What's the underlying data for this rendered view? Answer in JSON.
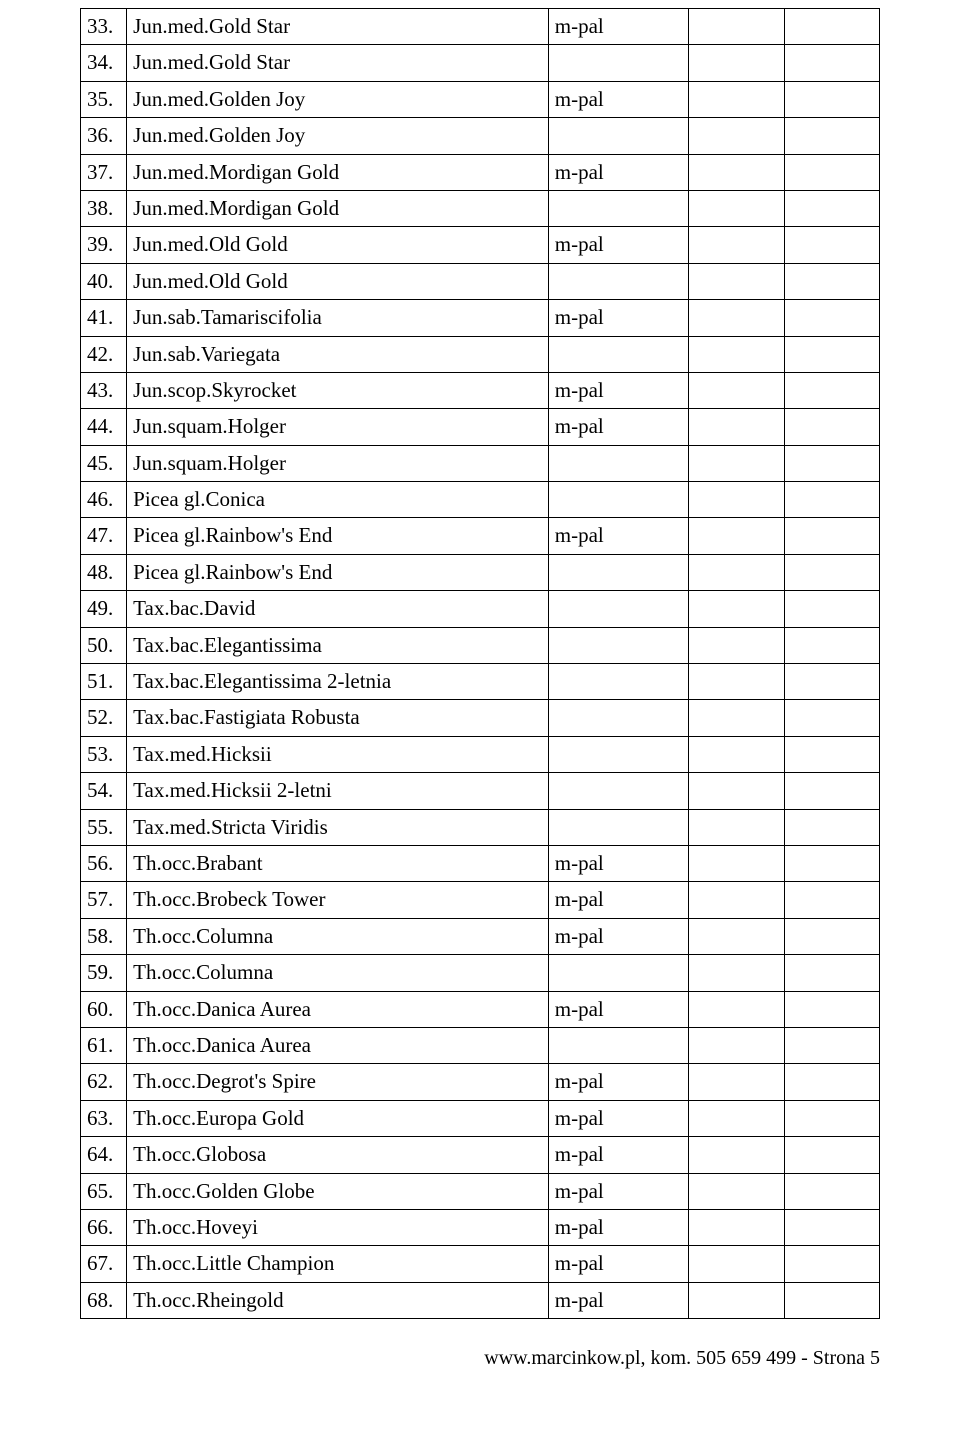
{
  "table": {
    "rows": [
      {
        "num": "33.",
        "name": "Jun.med.Gold Star",
        "note": "m-pal"
      },
      {
        "num": "34.",
        "name": "Jun.med.Gold Star",
        "note": ""
      },
      {
        "num": "35.",
        "name": "Jun.med.Golden Joy",
        "note": "m-pal"
      },
      {
        "num": "36.",
        "name": "Jun.med.Golden Joy",
        "note": ""
      },
      {
        "num": "37.",
        "name": "Jun.med.Mordigan Gold",
        "note": "m-pal"
      },
      {
        "num": "38.",
        "name": "Jun.med.Mordigan Gold",
        "note": ""
      },
      {
        "num": "39.",
        "name": "Jun.med.Old Gold",
        "note": "m-pal"
      },
      {
        "num": "40.",
        "name": "Jun.med.Old Gold",
        "note": ""
      },
      {
        "num": "41.",
        "name": "Jun.sab.Tamariscifolia",
        "note": "m-pal"
      },
      {
        "num": "42.",
        "name": "Jun.sab.Variegata",
        "note": ""
      },
      {
        "num": "43.",
        "name": "Jun.scop.Skyrocket",
        "note": "m-pal"
      },
      {
        "num": "44.",
        "name": "Jun.squam.Holger",
        "note": "m-pal"
      },
      {
        "num": "45.",
        "name": "Jun.squam.Holger",
        "note": ""
      },
      {
        "num": "46.",
        "name": "Picea gl.Conica",
        "note": ""
      },
      {
        "num": "47.",
        "name": "Picea gl.Rainbow's End",
        "note": "m-pal"
      },
      {
        "num": "48.",
        "name": "Picea gl.Rainbow's End",
        "note": ""
      },
      {
        "num": "49.",
        "name": "Tax.bac.David",
        "note": ""
      },
      {
        "num": "50.",
        "name": "Tax.bac.Elegantissima",
        "note": ""
      },
      {
        "num": "51.",
        "name": "Tax.bac.Elegantissima  2-letnia",
        "note": ""
      },
      {
        "num": "52.",
        "name": "Tax.bac.Fastigiata Robusta",
        "note": ""
      },
      {
        "num": "53.",
        "name": "Tax.med.Hicksii",
        "note": ""
      },
      {
        "num": "54.",
        "name": "Tax.med.Hicksii 2-letni",
        "note": ""
      },
      {
        "num": "55.",
        "name": "Tax.med.Stricta Viridis",
        "note": ""
      },
      {
        "num": "56.",
        "name": "Th.occ.Brabant",
        "note": "m-pal"
      },
      {
        "num": "57.",
        "name": "Th.occ.Brobeck Tower",
        "note": "m-pal"
      },
      {
        "num": "58.",
        "name": "Th.occ.Columna",
        "note": "m-pal"
      },
      {
        "num": "59.",
        "name": "Th.occ.Columna",
        "note": ""
      },
      {
        "num": "60.",
        "name": "Th.occ.Danica Aurea",
        "note": "m-pal"
      },
      {
        "num": "61.",
        "name": "Th.occ.Danica Aurea",
        "note": ""
      },
      {
        "num": "62.",
        "name": "Th.occ.Degrot's Spire",
        "note": "m-pal"
      },
      {
        "num": "63.",
        "name": "Th.occ.Europa Gold",
        "note": "m-pal"
      },
      {
        "num": "64.",
        "name": "Th.occ.Globosa",
        "note": "m-pal"
      },
      {
        "num": "65.",
        "name": "Th.occ.Golden Globe",
        "note": "m-pal"
      },
      {
        "num": "66.",
        "name": "Th.occ.Hoveyi",
        "note": "m-pal"
      },
      {
        "num": "67.",
        "name": "Th.occ.Little Champion",
        "note": "m-pal"
      },
      {
        "num": "68.",
        "name": "Th.occ.Rheingold",
        "note": "m-pal"
      }
    ]
  },
  "footer": {
    "text": "www.marcinkow.pl, kom. 505 659 499   -  Strona 5"
  }
}
